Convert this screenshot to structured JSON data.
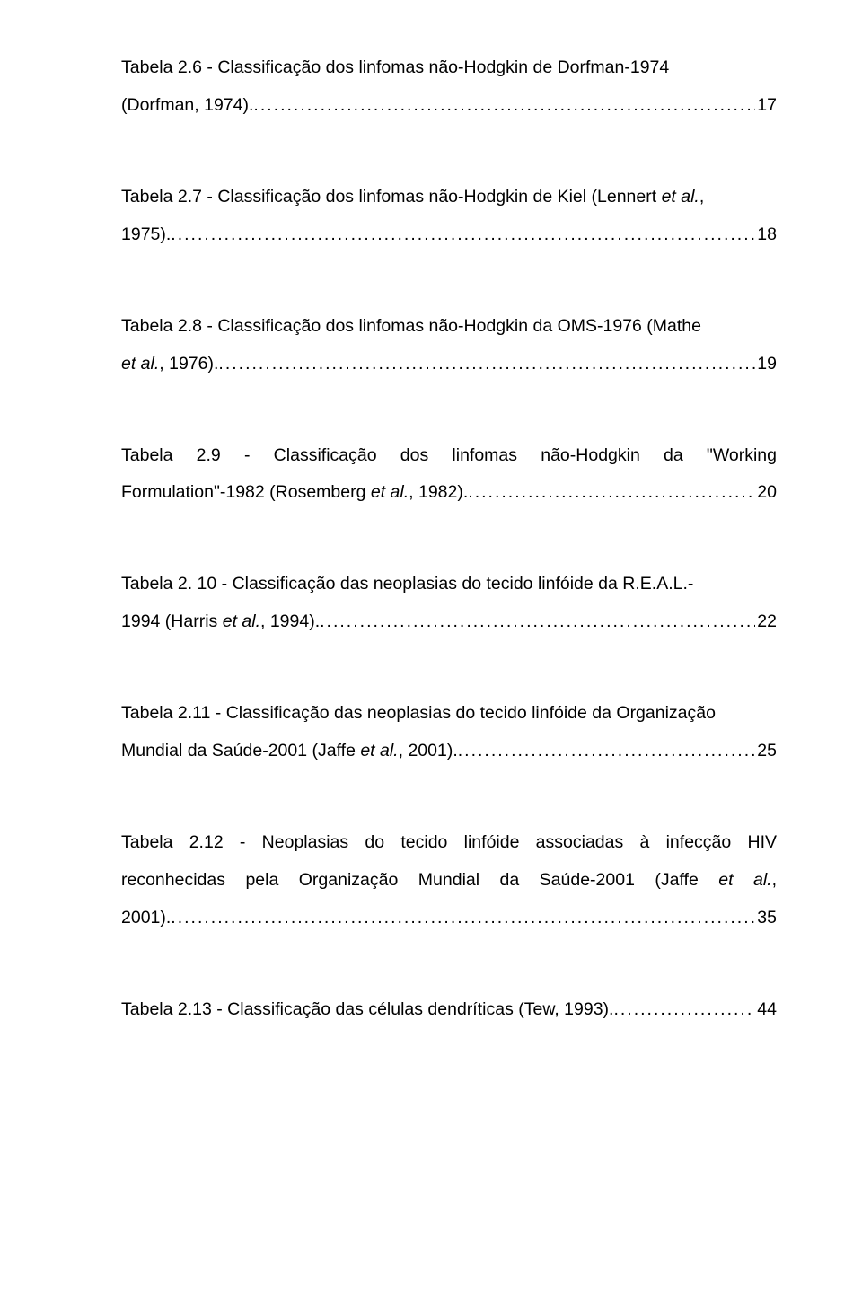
{
  "leader_dots": "...........................................................................................................................................................",
  "entries": [
    {
      "text_prefix_line1": "Tabela 2.6 - Classificação dos linfomas não-Hodgkin de Dorfman-1974",
      "text_prefix_final": "(Dorfman, 1974).",
      "page": "17",
      "italic_final": false
    },
    {
      "text_prefix_line1_a": "Tabela 2.7 - Classificação dos linfomas não-Hodgkin de Kiel (Lennert ",
      "text_prefix_line1_b": "et al.",
      "text_prefix_line1_c": ",",
      "text_prefix_final": "1975).",
      "page": "18",
      "italic_line1_b": true
    },
    {
      "text_prefix_line1_a": "Tabela 2.8 - Classificação dos linfomas não-Hodgkin da OMS-1976 (Mathe",
      "text_prefix_final_a": "et al.",
      "text_prefix_final_b": ", 1976).",
      "page": "19",
      "italic_final_a": true,
      "justify_line1": false
    },
    {
      "text_prefix_line1": "Tabela 2.9 - Classificação dos linfomas não-Hodgkin da \"Working",
      "text_prefix_final_a": "Formulation\"-1982 (Rosemberg ",
      "text_prefix_final_b": "et al.",
      "text_prefix_final_c": ", 1982).",
      "page": "20",
      "italic_final_b": true,
      "justify_line1": true
    },
    {
      "text_prefix_line1": "Tabela 2. 10 - Classificação das neoplasias do tecido linfóide da R.E.A.L.-",
      "text_prefix_final_a": "1994 (Harris ",
      "text_prefix_final_b": "et al.",
      "text_prefix_final_c": ", 1994).",
      "page": "22",
      "italic_final_b": true
    },
    {
      "text_prefix_line1": "Tabela 2.11 - Classificação das neoplasias do tecido linfóide da Organização",
      "text_prefix_final_a": "Mundial da Saúde-2001 (Jaffe ",
      "text_prefix_final_b": "et al.",
      "text_prefix_final_c": ", 2001).",
      "page": "25",
      "italic_final_b": true
    },
    {
      "text_prefix_line1": "Tabela 2.12 - Neoplasias do tecido linfóide associadas à infecção HIV",
      "text_prefix_line2_a": "reconhecidas pela Organização Mundial da Saúde-2001 (Jaffe ",
      "text_prefix_line2_b": "et al.",
      "text_prefix_line2_c": ",",
      "text_prefix_final": "2001).",
      "page": "35",
      "italic_line2_b": true,
      "justify_line1": true,
      "justify_line2": true
    },
    {
      "text_prefix_final": "Tabela 2.13 - Classificação das células dendríticas (Tew, 1993).",
      "page": "44"
    }
  ]
}
